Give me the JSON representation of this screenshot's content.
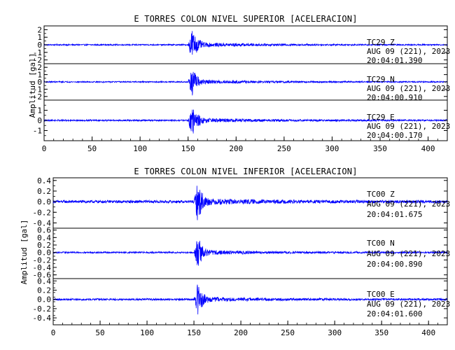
{
  "chart_data": [
    {
      "type": "line",
      "title": "E TORRES COLON NIVEL SUPERIOR [ACELERACION]",
      "ylabel": "Amplitud [gal]",
      "xlim": [
        0,
        420
      ],
      "xticks": [
        0,
        50,
        100,
        150,
        200,
        250,
        300,
        350,
        400
      ],
      "grid": false,
      "panels": [
        {
          "ylim": [
            -2.5,
            2.5
          ],
          "yticks": [
            2,
            1,
            0,
            -1,
            -2
          ],
          "ytick_labels": [
            "2",
            "1",
            "0",
            "-1",
            "-2"
          ],
          "noise_amp": 0.08,
          "peak_amp": 2.2,
          "onset": 150,
          "peak_time": 154,
          "annotation": [
            "TC29   Z",
            "AUG 09 (221), 2023",
            "20:04:01.390"
          ]
        },
        {
          "ylim": [
            -2.5,
            2.5
          ],
          "yticks": [
            2,
            1,
            0,
            -1,
            -2
          ],
          "ytick_labels": [
            "2",
            "1",
            "0",
            "-1",
            "-2"
          ],
          "noise_amp": 0.08,
          "peak_amp": 2.0,
          "onset": 150,
          "peak_time": 154,
          "annotation": [
            "TC29   N",
            "AUG 09 (221), 2023",
            "20:04:00.910"
          ]
        },
        {
          "ylim": [
            -2.0,
            2.0
          ],
          "yticks": [
            1,
            0,
            -1
          ],
          "ytick_labels": [
            "1",
            "0",
            "-1"
          ],
          "noise_amp": 0.07,
          "peak_amp": 1.7,
          "onset": 150,
          "peak_time": 154,
          "annotation": [
            "TC29   E",
            "AUG 09 (221), 2023",
            "20:04:00.170"
          ]
        }
      ]
    },
    {
      "type": "line",
      "title": "E TORRES COLON NIVEL INFERIOR [ACELERACION]",
      "ylabel": "Amplitud [gal]",
      "xlim": [
        0,
        420
      ],
      "xticks": [
        0,
        50,
        100,
        150,
        200,
        250,
        300,
        350,
        400
      ],
      "grid": false,
      "panels": [
        {
          "ylim": [
            -0.5,
            0.45
          ],
          "yticks": [
            0.4,
            0.2,
            0.0,
            -0.2,
            -0.4
          ],
          "ytick_labels": [
            "0.4",
            "0.2",
            "0.0",
            "-0.2",
            "-0.4"
          ],
          "noise_amp": 0.025,
          "peak_amp": 0.38,
          "onset": 150,
          "peak_time": 154,
          "annotation": [
            "TC00   Z",
            "AUG 09 (221), 2023",
            "20:04:01.675"
          ]
        },
        {
          "ylim": [
            -0.7,
            0.65
          ],
          "yticks": [
            0.6,
            0.4,
            0.2,
            0.0,
            -0.2,
            -0.4,
            -0.6
          ],
          "ytick_labels": [
            "0.6",
            "0.4",
            "0.2",
            "0.0",
            "-0.2",
            "-0.4",
            "-0.6"
          ],
          "noise_amp": 0.02,
          "peak_amp": 0.45,
          "onset": 150,
          "peak_time": 154,
          "annotation": [
            "TC00   N",
            "AUG 09 (221), 2023",
            "20:04:00.890"
          ]
        },
        {
          "ylim": [
            -0.55,
            0.45
          ],
          "yticks": [
            0.4,
            0.2,
            0.0,
            -0.2,
            -0.4
          ],
          "ytick_labels": [
            "0.4",
            "0.2",
            "0.0",
            "-0.2",
            "-0.4"
          ],
          "noise_amp": 0.02,
          "peak_amp": 0.35,
          "onset": 150,
          "peak_time": 154,
          "annotation": [
            "TC00   E",
            "AUG 09 (221), 2023",
            "20:04:01.600"
          ]
        }
      ]
    }
  ],
  "colors": {
    "trace": "#0000ff",
    "axis": "#000000",
    "background": "#ffffff"
  }
}
